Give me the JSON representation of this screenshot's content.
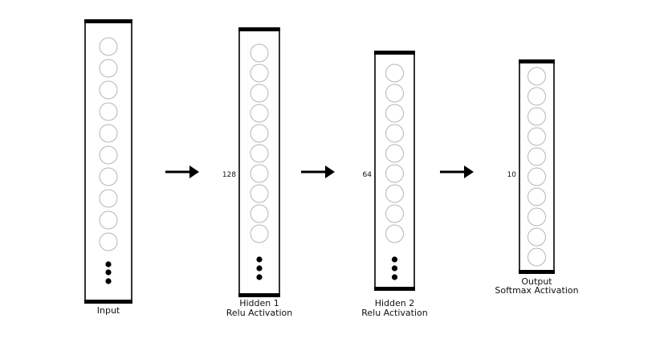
{
  "layers": [
    {
      "id": "input",
      "caption": [
        "Input"
      ],
      "count": "",
      "neurons": 10,
      "ellipsis": true
    },
    {
      "id": "hidden1",
      "caption": [
        "Hidden 1",
        "Relu Activation"
      ],
      "count": "128",
      "neurons": 10,
      "ellipsis": true
    },
    {
      "id": "hidden2",
      "caption": [
        "Hidden 2",
        "Relu Activation"
      ],
      "count": "64",
      "neurons": 9,
      "ellipsis": true
    },
    {
      "id": "output",
      "caption": [
        "Output",
        "Softmax Activation"
      ],
      "count": "10",
      "neurons": 10,
      "ellipsis": false
    }
  ],
  "arrows": 3
}
